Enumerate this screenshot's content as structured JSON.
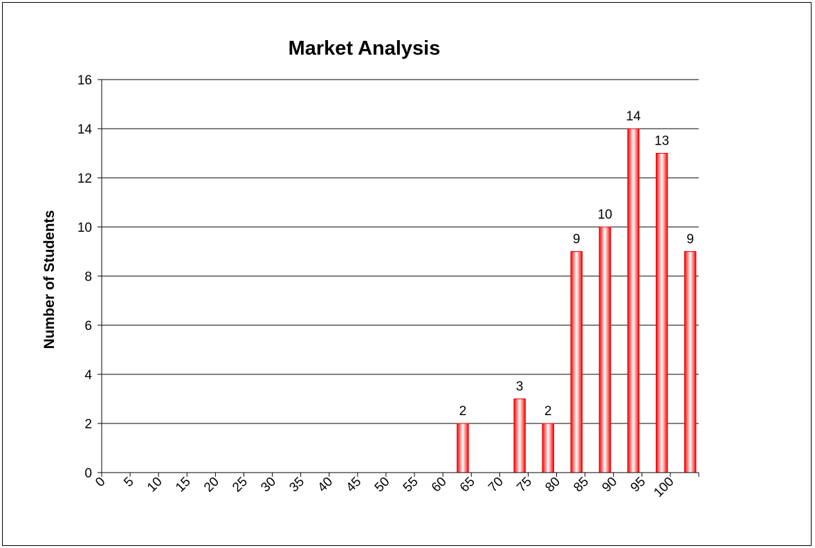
{
  "chart_data": {
    "type": "bar",
    "title": "Market Analysis",
    "xlabel": "",
    "ylabel": "Number of Students",
    "ylim": [
      0,
      16
    ],
    "yticks": [
      "0",
      "2",
      "4",
      "6",
      "8",
      "10",
      "12",
      "14",
      "16"
    ],
    "xticks": [
      "0",
      "5",
      "10",
      "15",
      "20",
      "25",
      "30",
      "35",
      "40",
      "45",
      "50",
      "55",
      "60",
      "65",
      "70",
      "75",
      "80",
      "85",
      "90",
      "95",
      "100"
    ],
    "categories": [
      "0",
      "5",
      "10",
      "15",
      "20",
      "25",
      "30",
      "35",
      "40",
      "45",
      "50",
      "55",
      "60",
      "65",
      "70",
      "75",
      "80",
      "85",
      "90",
      "95",
      "100"
    ],
    "values": [
      0,
      0,
      0,
      0,
      0,
      0,
      0,
      0,
      0,
      0,
      0,
      0,
      2,
      0,
      3,
      2,
      9,
      10,
      14,
      13,
      9
    ],
    "data_labels": [
      "",
      "",
      "",
      "",
      "",
      "",
      "",
      "",
      "",
      "",
      "",
      "",
      "2",
      "",
      "3",
      "2",
      "9",
      "10",
      "14",
      "13",
      "9"
    ],
    "grid": true,
    "legend": "none",
    "colors": {
      "bar_edge": "#e00000",
      "bar_fill": "#ff0000",
      "bar_highlight": "#ffffff"
    }
  }
}
